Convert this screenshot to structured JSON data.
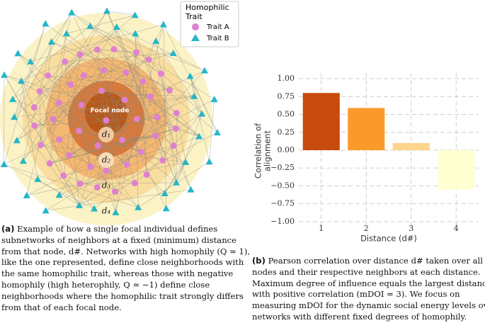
{
  "panel_a": {
    "legend_title": [
      "Homophilic",
      "Trait"
    ],
    "legend_entries": [
      "Trait A",
      "Trait B"
    ],
    "focal_label": "Focal node",
    "distance_labels": [
      "d₁",
      "d₂",
      "d₃",
      "d₄"
    ],
    "caption_label": "(a)",
    "caption_lines": [
      " Example of how a single focal individual defines",
      "subnetworks of neighbors at a fixed (minimum) distance",
      "from that node, d#. Networks with high homophily (Q ≈ 1),",
      "like the one represented, define close neighborhoods with",
      "the same homophilic trait, whereas those with negative",
      "homophily (high heterophily, Q ≈ −1) define close",
      "neighborhoods where the homophilic trait strongly differs",
      "from that of each focal node."
    ]
  },
  "chart_data": {
    "type": "bar",
    "ylabel": [
      "Correlation of",
      "alignment"
    ],
    "xlabel": "Distance (d#)",
    "categories": [
      "1",
      "2",
      "3",
      "4"
    ],
    "values": [
      0.8,
      0.59,
      0.1,
      -0.55
    ],
    "colors": [
      "#c84a0c",
      "#fb9a2b",
      "#fdd58c",
      "#ffffd2"
    ],
    "ylim": [
      -1.1,
      1.08
    ],
    "yticks": [
      {
        "value": -1,
        "label": "−1.00"
      },
      {
        "value": -0.75,
        "label": "−0.75"
      },
      {
        "value": -0.5,
        "label": "−0.50"
      },
      {
        "value": -0.25,
        "label": "−0.25"
      },
      {
        "value": 0,
        "label": "0.00"
      },
      {
        "value": 0.25,
        "label": "0.25"
      },
      {
        "value": 0.5,
        "label": "0.50"
      },
      {
        "value": 0.75,
        "label": "0.75"
      },
      {
        "value": 1,
        "label": "1.00"
      }
    ],
    "grid": true
  },
  "panel_b": {
    "caption_label": "(b)",
    "caption_lines": [
      " Pearson correlation over distance d# taken over all focal",
      "nodes and their respective neighbors at each distance.",
      "Maximum degree of influence equals the largest distance",
      "with positive correlation (mDOI = 3). We focus on",
      "measuring mDOI for the dynamic social energy levels over",
      "networks with different fixed degrees of homophily."
    ]
  }
}
